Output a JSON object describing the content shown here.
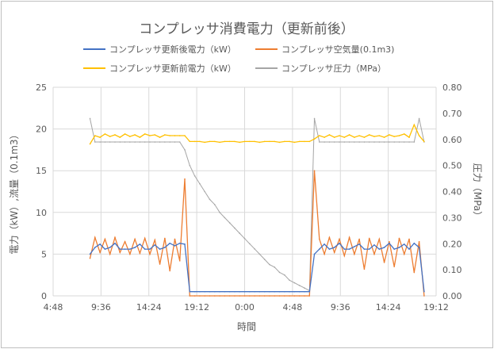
{
  "chart_data": {
    "type": "line",
    "title": "コンプレッサ消費電力（更新前後）",
    "xlabel": "時間",
    "ylabel": "電力（kW）,流量（0.1m3）",
    "y2label": "圧力（MPa）",
    "ylim": [
      0,
      25
    ],
    "y2lim": [
      0,
      0.8
    ],
    "yticks": [
      "0",
      "5",
      "10",
      "15",
      "20",
      "25"
    ],
    "y2ticks": [
      "0.00",
      "0.10",
      "0.20",
      "0.30",
      "0.40",
      "0.50",
      "0.60",
      "0.70",
      "0.80"
    ],
    "xticks": [
      "4:48",
      "9:36",
      "14:24",
      "19:12",
      "0:00",
      "4:48",
      "9:36",
      "14:24",
      "19:12"
    ],
    "grid": true,
    "legend_position": "top",
    "x": [
      "D1 08:30",
      "D1 09:00",
      "D1 09:30",
      "D1 10:00",
      "D1 10:30",
      "D1 11:00",
      "D1 11:30",
      "D1 12:00",
      "D1 12:30",
      "D1 13:00",
      "D1 13:30",
      "D1 14:00",
      "D1 14:30",
      "D1 15:00",
      "D1 15:30",
      "D1 16:00",
      "D1 16:30",
      "D1 17:00",
      "D1 17:30",
      "D1 18:00",
      "D1 18:30",
      "D1 19:00",
      "D1 19:30",
      "D1 20:00",
      "D1 20:30",
      "D1 21:00",
      "D1 21:30",
      "D1 22:00",
      "D1 22:30",
      "D1 23:00",
      "D1 23:30",
      "D2 00:00",
      "D2 00:30",
      "D2 01:00",
      "D2 01:30",
      "D2 02:00",
      "D2 02:30",
      "D2 03:00",
      "D2 03:30",
      "D2 04:00",
      "D2 04:30",
      "D2 05:00",
      "D2 05:30",
      "D2 06:00",
      "D2 06:30",
      "D2 07:00",
      "D2 07:30",
      "D2 08:00",
      "D2 08:30",
      "D2 09:00",
      "D2 09:30",
      "D2 10:00",
      "D2 10:30",
      "D2 11:00",
      "D2 11:30",
      "D2 12:00",
      "D2 12:30",
      "D2 13:00",
      "D2 13:30",
      "D2 14:00",
      "D2 14:30",
      "D2 15:00",
      "D2 15:30",
      "D2 16:00",
      "D2 16:30",
      "D2 17:00",
      "D2 17:30",
      "D2 18:00"
    ],
    "series": [
      {
        "name": "コンプレッサ更新後電力（kW）",
        "color": "#4472c4",
        "axis": "left",
        "values": [
          5.0,
          5.8,
          6.2,
          5.6,
          5.8,
          6.3,
          5.6,
          5.6,
          5.6,
          5.8,
          6.2,
          5.6,
          5.6,
          6.1,
          5.6,
          5.8,
          6.3,
          6.0,
          6.3,
          6.2,
          0.5,
          0.5,
          0.5,
          0.5,
          0.5,
          0.5,
          0.5,
          0.5,
          0.5,
          0.5,
          0.5,
          0.5,
          0.5,
          0.5,
          0.5,
          0.5,
          0.5,
          0.5,
          0.5,
          0.5,
          0.5,
          0.5,
          0.5,
          0.5,
          0.5,
          5.0,
          5.6,
          6.2,
          5.6,
          5.8,
          6.3,
          5.6,
          5.6,
          5.9,
          6.2,
          5.6,
          5.6,
          6.1,
          5.6,
          5.8,
          6.3,
          5.6,
          5.8,
          6.2,
          5.6,
          6.3,
          5.8,
          0.5
        ]
      },
      {
        "name": "コンプレッサ空気量(0.1m3)",
        "color": "#ed7d31",
        "axis": "left",
        "values": [
          4.5,
          7.0,
          5.2,
          6.8,
          5.0,
          7.0,
          5.2,
          6.5,
          5.0,
          6.8,
          5.1,
          6.9,
          5.0,
          6.7,
          3.8,
          6.9,
          3.0,
          6.8,
          4.2,
          14.0,
          0,
          0,
          0,
          0,
          0,
          0,
          0,
          0,
          0,
          0,
          0,
          0,
          0,
          0,
          0,
          0,
          0,
          0,
          0,
          0,
          0,
          0,
          0,
          0,
          0,
          15.0,
          6.8,
          5.0,
          7.0,
          5.2,
          6.8,
          4.8,
          7.0,
          5.0,
          6.8,
          3.2,
          6.9,
          5.0,
          6.8,
          4.0,
          6.5,
          3.5,
          6.9,
          5.0,
          6.8,
          2.8,
          6.5,
          0
        ]
      },
      {
        "name": "コンプレッサ更新前電力（kW）",
        "color": "#ffc000",
        "axis": "left",
        "values": [
          18.2,
          19.2,
          19.0,
          19.4,
          19.1,
          19.3,
          19.0,
          19.4,
          19.1,
          19.3,
          19.0,
          19.4,
          19.2,
          19.3,
          19.0,
          19.3,
          19.2,
          19.2,
          19.2,
          19.2,
          18.5,
          18.5,
          18.5,
          18.4,
          18.5,
          18.5,
          18.4,
          18.5,
          18.5,
          18.5,
          18.4,
          18.5,
          18.5,
          18.5,
          18.4,
          18.5,
          18.5,
          18.5,
          18.4,
          18.5,
          18.5,
          18.4,
          18.5,
          18.5,
          18.5,
          18.8,
          19.2,
          19.0,
          19.3,
          19.0,
          19.2,
          19.0,
          19.3,
          19.0,
          19.2,
          19.0,
          19.3,
          19.1,
          19.2,
          19.0,
          19.3,
          19.1,
          19.2,
          19.4,
          19.0,
          20.5,
          19.2,
          18.5
        ]
      },
      {
        "name": "コンプレッサ圧力（MPa）",
        "color": "#a5a5a5",
        "axis": "right",
        "values": [
          0.68,
          0.59,
          0.59,
          0.59,
          0.59,
          0.59,
          0.59,
          0.59,
          0.59,
          0.59,
          0.59,
          0.59,
          0.59,
          0.59,
          0.59,
          0.59,
          0.59,
          0.59,
          0.59,
          0.56,
          0.5,
          0.46,
          0.43,
          0.4,
          0.37,
          0.35,
          0.32,
          0.3,
          0.28,
          0.26,
          0.24,
          0.22,
          0.2,
          0.18,
          0.16,
          0.14,
          0.12,
          0.11,
          0.09,
          0.08,
          0.06,
          0.05,
          0.04,
          0.03,
          0.02,
          0.68,
          0.59,
          0.59,
          0.59,
          0.59,
          0.59,
          0.59,
          0.59,
          0.59,
          0.59,
          0.59,
          0.59,
          0.59,
          0.59,
          0.59,
          0.59,
          0.59,
          0.59,
          0.59,
          0.59,
          0.59,
          0.68,
          0.59
        ]
      }
    ]
  }
}
